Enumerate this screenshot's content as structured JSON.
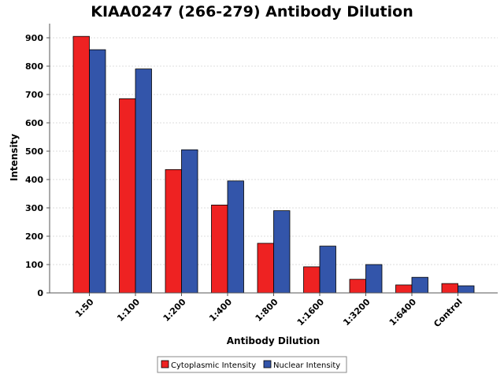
{
  "chart_data": {
    "type": "bar",
    "title": "KIAA0247 (266-279) Antibody Dilution",
    "xlabel": "Antibody Dilution",
    "ylabel": "Intensity",
    "categories": [
      "1:50",
      "1:100",
      "1:200",
      "1:400",
      "1:800",
      "1:1600",
      "1:3200",
      "1:6400",
      "Control"
    ],
    "series": [
      {
        "name": "Cytoplasmic Intensity",
        "color": "#ee2222",
        "values": [
          905,
          685,
          435,
          310,
          175,
          92,
          48,
          28,
          33
        ]
      },
      {
        "name": "Nuclear Intensity",
        "color": "#3355aa",
        "values": [
          858,
          790,
          505,
          395,
          290,
          165,
          100,
          55,
          25
        ]
      }
    ],
    "ylim": [
      0,
      950
    ],
    "yticks": [
      0,
      100,
      200,
      300,
      400,
      500,
      600,
      700,
      800,
      900
    ],
    "grid": true,
    "legend_position": "bottom"
  }
}
